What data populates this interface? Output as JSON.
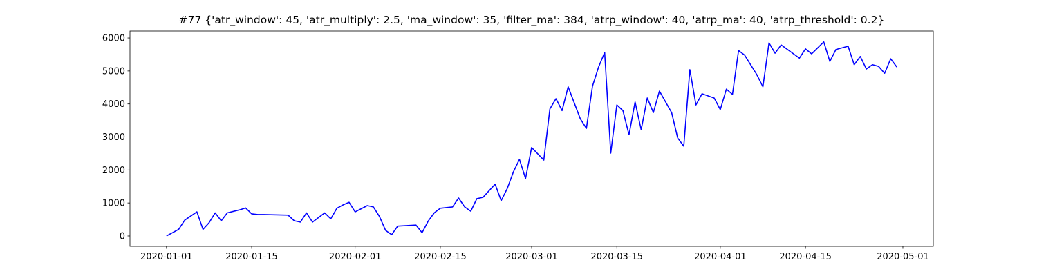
{
  "chart_data": {
    "type": "line",
    "title": "#77 {'atr_window': 45, 'atr_multiply': 2.5, 'ma_window': 35, 'filter_ma': 384, 'atrp_window': 40, 'atrp_ma': 40, 'atrp_threshold': 0.2}",
    "x": [
      "2020-01-01",
      "2020-01-02",
      "2020-01-03",
      "2020-01-04",
      "2020-01-06",
      "2020-01-07",
      "2020-01-08",
      "2020-01-09",
      "2020-01-10",
      "2020-01-11",
      "2020-01-13",
      "2020-01-14",
      "2020-01-15",
      "2020-01-16",
      "2020-01-17",
      "2020-01-21",
      "2020-01-22",
      "2020-01-23",
      "2020-01-24",
      "2020-01-25",
      "2020-01-27",
      "2020-01-28",
      "2020-01-29",
      "2020-01-30",
      "2020-01-31",
      "2020-02-01",
      "2020-02-03",
      "2020-02-04",
      "2020-02-05",
      "2020-02-06",
      "2020-02-07",
      "2020-02-08",
      "2020-02-11",
      "2020-02-12",
      "2020-02-13",
      "2020-02-14",
      "2020-02-15",
      "2020-02-17",
      "2020-02-18",
      "2020-02-19",
      "2020-02-20",
      "2020-02-21",
      "2020-02-22",
      "2020-02-24",
      "2020-02-25",
      "2020-02-26",
      "2020-02-27",
      "2020-02-28",
      "2020-02-29",
      "2020-03-01",
      "2020-03-03",
      "2020-03-04",
      "2020-03-05",
      "2020-03-06",
      "2020-03-07",
      "2020-03-09",
      "2020-03-10",
      "2020-03-11",
      "2020-03-12",
      "2020-03-13",
      "2020-03-14",
      "2020-03-15",
      "2020-03-16",
      "2020-03-17",
      "2020-03-18",
      "2020-03-19",
      "2020-03-20",
      "2020-03-21",
      "2020-03-22",
      "2020-03-24",
      "2020-03-25",
      "2020-03-26",
      "2020-03-27",
      "2020-03-28",
      "2020-03-29",
      "2020-03-31",
      "2020-04-01",
      "2020-04-02",
      "2020-04-03",
      "2020-04-04",
      "2020-04-05",
      "2020-04-07",
      "2020-04-08",
      "2020-04-09",
      "2020-04-10",
      "2020-04-11",
      "2020-04-14",
      "2020-04-15",
      "2020-04-16",
      "2020-04-18",
      "2020-04-19",
      "2020-04-20",
      "2020-04-22",
      "2020-04-23",
      "2020-04-24",
      "2020-04-25",
      "2020-04-26",
      "2020-04-27",
      "2020-04-28",
      "2020-04-29",
      "2020-04-30"
    ],
    "series": [
      {
        "color": "#0000ff",
        "values": [
          0,
          100,
          200,
          480,
          730,
          200,
          400,
          700,
          460,
          700,
          790,
          850,
          670,
          650,
          650,
          630,
          460,
          420,
          700,
          420,
          700,
          520,
          840,
          940,
          1020,
          730,
          920,
          880,
          590,
          170,
          40,
          300,
          330,
          100,
          450,
          700,
          840,
          880,
          1150,
          880,
          750,
          1130,
          1170,
          1570,
          1070,
          1440,
          1940,
          2320,
          1740,
          2680,
          2300,
          3850,
          4160,
          3800,
          4520,
          3550,
          3260,
          4540,
          5120,
          5560,
          2510,
          3970,
          3800,
          3070,
          4060,
          3220,
          4180,
          3740,
          4390,
          3740,
          2970,
          2720,
          5040,
          3970,
          4310,
          4180,
          3830,
          4450,
          4290,
          5620,
          5480,
          4890,
          4520,
          5850,
          5540,
          5790,
          5390,
          5670,
          5520,
          5880,
          5290,
          5650,
          5750,
          5190,
          5440,
          5060,
          5190,
          5140,
          4930,
          5370,
          5120
        ]
      }
    ],
    "xlim": [
      "2019-12-26",
      "2020-05-06"
    ],
    "xticks": [
      "2020-01-01",
      "2020-01-15",
      "2020-02-01",
      "2020-02-15",
      "2020-03-01",
      "2020-03-15",
      "2020-04-01",
      "2020-04-15",
      "2020-05-01"
    ],
    "ylim": [
      -314,
      6210
    ],
    "yticks": [
      0,
      1000,
      2000,
      3000,
      4000,
      5000,
      6000
    ],
    "grid": false
  }
}
